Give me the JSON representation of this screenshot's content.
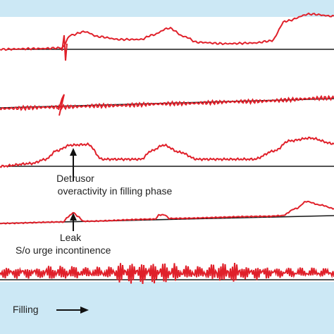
{
  "colors": {
    "band": "#cce8f5",
    "trace": "#e0202a",
    "baseline": "#1a1a1a",
    "arrow": "#111111",
    "text": "#222222"
  },
  "annotations": {
    "detrusor_line1": "Detrusor",
    "detrusor_line2": "overactivity in filling phase",
    "leak_line1": "Leak",
    "leak_line2": "S/o urge incontinence",
    "filling_label": "Filling"
  }
}
